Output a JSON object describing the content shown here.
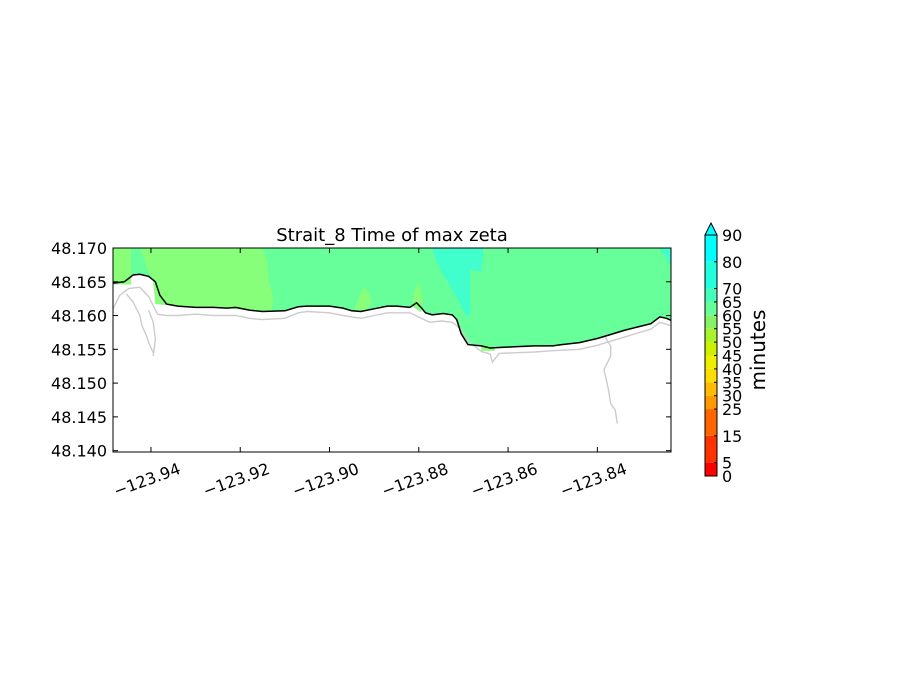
{
  "chart_data": {
    "type": "heatmap",
    "title": "Strait_8 Time of max zeta",
    "xlabel": "",
    "ylabel": "",
    "xlim": [
      -123.9485,
      -123.8235
    ],
    "ylim": [
      48.1398,
      48.17
    ],
    "x_ticks": [
      -123.94,
      -123.92,
      -123.9,
      -123.88,
      -123.86,
      -123.84
    ],
    "x_tick_labels": [
      "−123.94",
      "−123.92",
      "−123.90",
      "−123.88",
      "−123.86",
      "−123.84"
    ],
    "y_ticks": [
      48.17,
      48.165,
      48.16,
      48.155,
      48.15,
      48.145,
      48.14
    ],
    "y_tick_labels": [
      "48.170",
      "48.165",
      "48.160",
      "48.155",
      "48.150",
      "48.145",
      "48.140"
    ],
    "grid": false,
    "colorbar": {
      "label": "minutes",
      "ticks": [
        0,
        5,
        15,
        25,
        30,
        35,
        40,
        45,
        50,
        55,
        60,
        65,
        70,
        80,
        90
      ],
      "tick_labels": [
        "0",
        "5",
        "15",
        "25",
        "30",
        "35",
        "40",
        "45",
        "50",
        "55",
        "60",
        "65",
        "70",
        "80",
        "90"
      ],
      "extend": "max",
      "colors": [
        "#ff0000",
        "#ff3300",
        "#ff6600",
        "#ff9900",
        "#ffbb00",
        "#ffdd00",
        "#eeee00",
        "#ccf000",
        "#aaf22a",
        "#88f266",
        "#66ff99",
        "#44ffbb",
        "#22ffdd",
        "#00ffff"
      ]
    },
    "coastline": {
      "x": [
        -123.9485,
        -123.946,
        -123.944,
        -123.9425,
        -123.9405,
        -123.939,
        -123.938,
        -123.9365,
        -123.934,
        -123.93,
        -123.926,
        -123.923,
        -123.921,
        -123.918,
        -123.915,
        -123.91,
        -123.907,
        -123.905,
        -123.9,
        -123.897,
        -123.895,
        -123.893,
        -123.89,
        -123.887,
        -123.885,
        -123.882,
        -123.8805,
        -123.8795,
        -123.8785,
        -123.877,
        -123.8745,
        -123.8725,
        -123.8715,
        -123.8705,
        -123.869,
        -123.866,
        -123.864,
        -123.861,
        -123.858,
        -123.854,
        -123.85,
        -123.848,
        -123.844,
        -123.84,
        -123.837,
        -123.834,
        -123.831,
        -123.828,
        -123.826,
        -123.8245,
        -123.8235
      ],
      "y": [
        48.1648,
        48.165,
        48.166,
        48.1661,
        48.1658,
        48.165,
        48.163,
        48.1617,
        48.1614,
        48.1612,
        48.1612,
        48.1611,
        48.1612,
        48.1608,
        48.1606,
        48.1607,
        48.1613,
        48.1614,
        48.1614,
        48.1611,
        48.1607,
        48.1606,
        48.161,
        48.1614,
        48.1614,
        48.1612,
        48.1619,
        48.1612,
        48.1604,
        48.1601,
        48.1603,
        48.1601,
        48.1594,
        48.1573,
        48.1557,
        48.1555,
        48.1552,
        48.1553,
        48.1554,
        48.1555,
        48.1555,
        48.1557,
        48.156,
        48.1566,
        48.1572,
        48.1578,
        48.1583,
        48.1588,
        48.1598,
        48.1596,
        48.1593
      ]
    },
    "outline": [
      {
        "x": [
          -123.9485,
          -123.947,
          -123.945,
          -123.9425,
          -123.9415,
          -123.9405,
          -123.9395,
          -123.939,
          -123.9385,
          -123.9365,
          -123.934,
          -123.93,
          -123.926,
          -123.921,
          -123.918,
          -123.915,
          -123.91,
          -123.907,
          -123.905,
          -123.9,
          -123.897,
          -123.893,
          -123.89,
          -123.887,
          -123.882,
          -123.8795,
          -123.8775,
          -123.875,
          -123.8725,
          -123.8705,
          -123.869,
          -123.866,
          -123.864,
          -123.8635,
          -123.862,
          -123.858,
          -123.854,
          -123.85,
          -123.844,
          -123.84,
          -123.837,
          -123.834,
          -123.831,
          -123.828,
          -123.826,
          -123.8235
        ],
        "y": [
          48.161,
          48.163,
          48.164,
          48.1642,
          48.1635,
          48.1628,
          48.1615,
          48.1608,
          48.1602,
          48.16,
          48.16,
          48.1602,
          48.16,
          48.16,
          48.1596,
          48.1594,
          48.1596,
          48.1604,
          48.1606,
          48.1604,
          48.16,
          48.1596,
          48.16,
          48.1604,
          48.1604,
          48.1596,
          48.159,
          48.1592,
          48.159,
          48.158,
          48.1562,
          48.1547,
          48.1543,
          48.1531,
          48.1544,
          48.1545,
          48.1546,
          48.1548,
          48.155,
          48.1556,
          48.1562,
          48.1568,
          48.1574,
          48.158,
          48.159,
          48.1585
        ]
      },
      {
        "x": [
          -123.9455,
          -123.944,
          -123.9425,
          -123.942,
          -123.941,
          -123.9405,
          -123.9395
        ],
        "y": [
          48.1632,
          48.162,
          48.16,
          48.1585,
          48.157,
          48.156,
          48.1545
        ]
      },
      {
        "x": [
          -123.9405,
          -123.9395,
          -123.939,
          -123.9395
        ],
        "y": [
          48.1608,
          48.159,
          48.1565,
          48.154
        ]
      },
      {
        "x": [
          -123.8385,
          -123.838,
          -123.837,
          -123.837,
          -123.8385,
          -123.838,
          -123.8375,
          -123.837,
          -123.836,
          -123.8355
        ],
        "y": [
          48.1575,
          48.1565,
          48.1555,
          48.154,
          48.152,
          48.1505,
          48.149,
          48.147,
          48.146,
          48.144
        ]
      }
    ],
    "regions": [
      {
        "value": 55,
        "color": "#88ff77",
        "x": [
          -123.9485,
          -123.9485,
          -123.9445,
          -123.9445,
          -123.9485
        ],
        "y": [
          48.17,
          48.165,
          48.165,
          48.17,
          48.17
        ]
      },
      {
        "value": 57,
        "color": "#88ff7a",
        "x": [
          -123.9425,
          -123.9405,
          -123.9395,
          -123.939,
          -123.934,
          -123.926,
          -123.918,
          -123.913,
          -123.9125,
          -123.9135,
          -123.914,
          -123.915,
          -123.9425
        ],
        "y": [
          48.17,
          48.1665,
          48.165,
          48.1617,
          48.1614,
          48.1612,
          48.1608,
          48.1606,
          48.1625,
          48.165,
          48.168,
          48.17,
          48.17
        ]
      },
      {
        "value": 57,
        "color": "#88ff7a",
        "x": [
          -123.8945,
          -123.8935,
          -123.8925,
          -123.8915,
          -123.8905,
          -123.8915,
          -123.8935,
          -123.8945
        ],
        "y": [
          48.161,
          48.1625,
          48.164,
          48.1638,
          48.162,
          48.161,
          48.1606,
          48.161
        ]
      },
      {
        "value": 57,
        "color": "#88ff7a",
        "x": [
          -123.8815,
          -123.881,
          -123.88,
          -123.879,
          -123.8795,
          -123.8815
        ],
        "y": [
          48.1614,
          48.1635,
          48.165,
          48.162,
          48.1605,
          48.1614
        ]
      },
      {
        "value": 57,
        "color": "#88ff7a",
        "x": [
          -123.9485,
          -123.9485,
          -123.9445,
          -123.9445
        ],
        "y": [
          48.165,
          48.1646,
          48.1646,
          48.165
        ]
      },
      {
        "value": 68,
        "color": "#40ffcc",
        "x": [
          -123.877,
          -123.876,
          -123.8745,
          -123.8735,
          -123.872,
          -123.8705,
          -123.8695,
          -123.8685,
          -123.8685,
          -123.8725,
          -123.8745,
          -123.877
        ],
        "y": [
          48.17,
          48.168,
          48.166,
          48.165,
          48.1632,
          48.1615,
          48.16,
          48.16,
          48.17,
          48.17,
          48.17,
          48.17
        ]
      },
      {
        "value": 68,
        "color": "#40ffcc",
        "x": [
          -123.8685,
          -123.8685,
          -123.866,
          -123.8655,
          -123.8685
        ],
        "y": [
          48.17,
          48.1668,
          48.1665,
          48.17,
          48.17
        ]
      },
      {
        "value": 68,
        "color": "#40ffcc",
        "x": [
          -123.826,
          -123.825,
          -123.8235,
          -123.8235,
          -123.826
        ],
        "y": [
          48.17,
          48.169,
          48.1672,
          48.17,
          48.17
        ]
      },
      {
        "value": 55,
        "color": "#88ff77",
        "x": [
          -123.866,
          -123.863,
          -123.863,
          -123.866
        ],
        "y": [
          48.1555,
          48.1553,
          48.1548,
          48.1548
        ]
      }
    ]
  }
}
